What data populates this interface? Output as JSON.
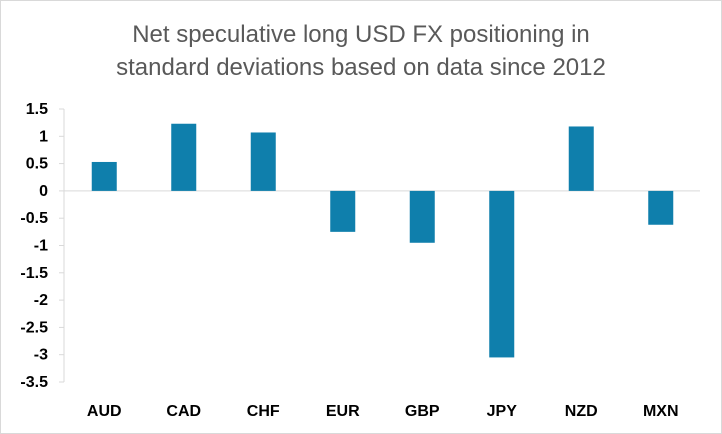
{
  "chart_data": {
    "type": "bar",
    "title_line1": "Net speculative long USD FX positioning in",
    "title_line2": "standard deviations based on data since 2012",
    "categories": [
      "AUD",
      "CAD",
      "CHF",
      "EUR",
      "GBP",
      "JPY",
      "NZD",
      "MXN"
    ],
    "values": [
      0.53,
      1.23,
      1.07,
      -0.75,
      -0.95,
      -3.05,
      1.18,
      -0.62
    ],
    "ylim": [
      -3.5,
      1.5
    ],
    "yticks": [
      "1.5",
      "1",
      "0.5",
      "0",
      "-0.5",
      "-1",
      "-1.5",
      "-2",
      "-2.5",
      "-3",
      "-3.5"
    ],
    "bar_color": "#0f7fac",
    "axis_color": "#d9d9d9",
    "grid": false,
    "legend": false
  }
}
